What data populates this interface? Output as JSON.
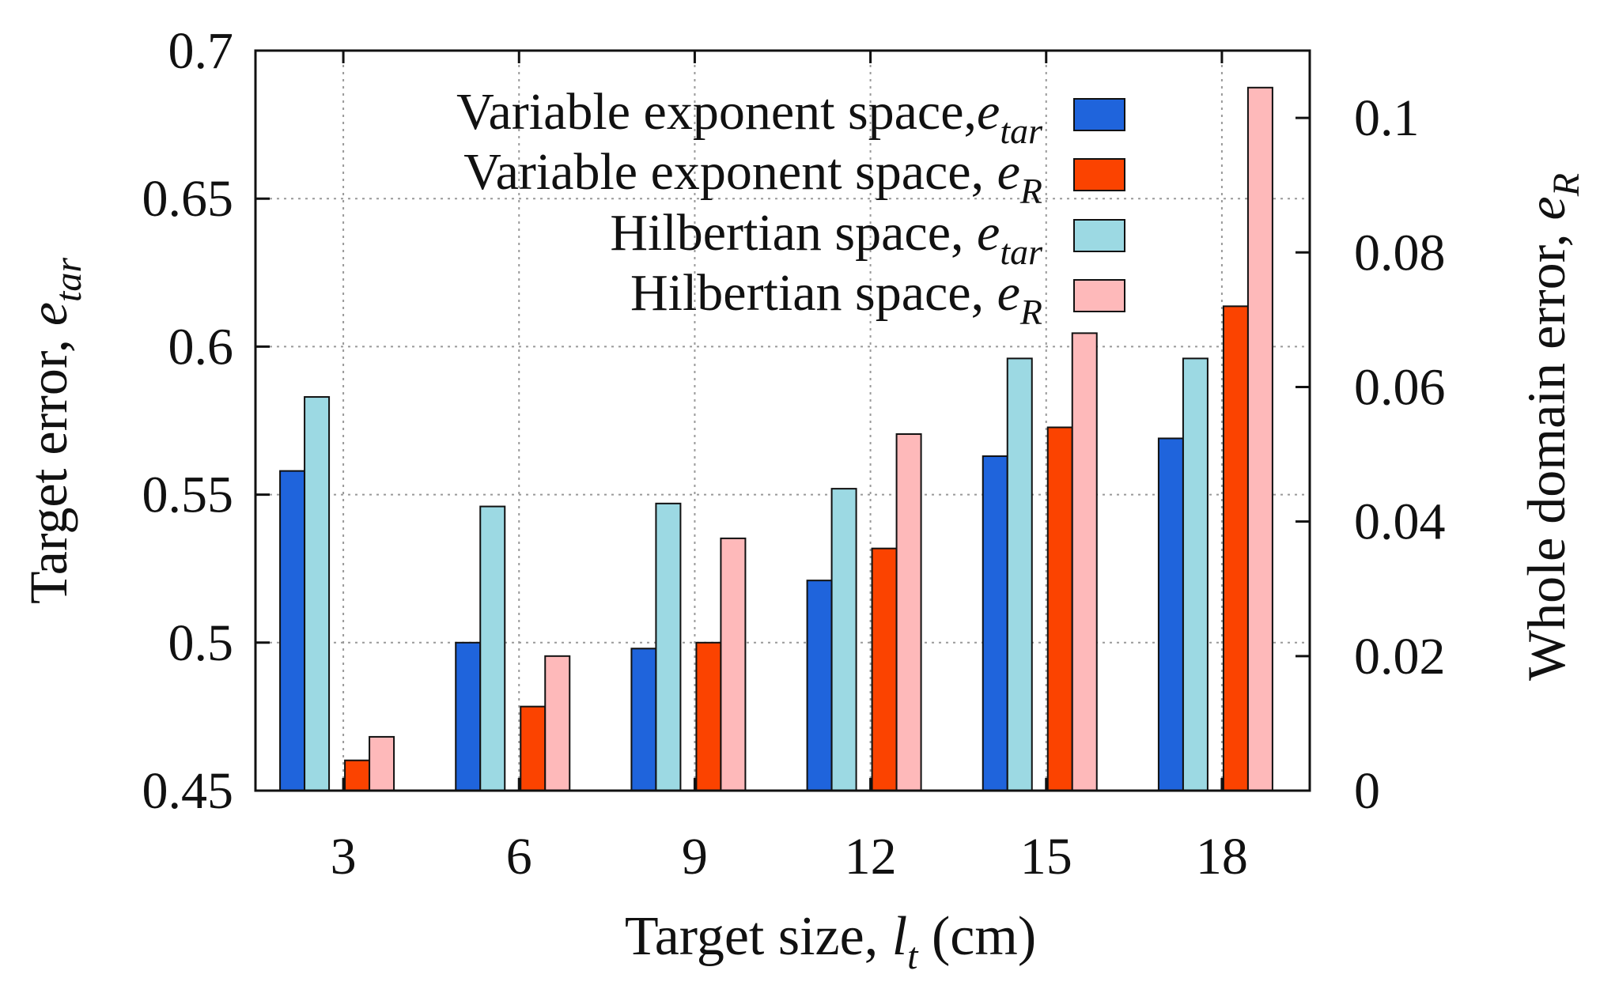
{
  "chart_data": {
    "type": "bar",
    "categories": [
      "3",
      "6",
      "9",
      "12",
      "15",
      "18"
    ],
    "xlabel": {
      "main": "Target size, ",
      "var": "l",
      "sub": "t",
      "unit": " (cm)"
    },
    "ylabel_left": {
      "main": "Target error, ",
      "var": "e",
      "sub": "tar"
    },
    "ylabel_right": {
      "main": "Whole domain error, ",
      "var": "e",
      "sub": "R"
    },
    "y_left": {
      "range": [
        0.45,
        0.7
      ],
      "ticks": [
        0.45,
        0.5,
        0.55,
        0.6,
        0.65,
        0.7
      ],
      "tick_labels": [
        "0.45",
        "0.5",
        "0.55",
        "0.6",
        "0.65",
        "0.7"
      ]
    },
    "y_right": {
      "range": [
        0,
        0.11
      ],
      "ticks": [
        0,
        0.02,
        0.04,
        0.06,
        0.08,
        0.1
      ],
      "tick_labels": [
        "0",
        "0.02",
        "0.04",
        "0.06",
        "0.08",
        "0.1"
      ]
    },
    "grid": true,
    "legend_position": "top-right",
    "series": [
      {
        "name": "Variable exponent space,",
        "var": "e",
        "sub": "tar",
        "axis": "left",
        "color": "#1f64dc",
        "values": [
          0.558,
          0.5,
          0.498,
          0.521,
          0.563,
          0.569
        ]
      },
      {
        "name": "Hilbertian space,",
        "var": "e",
        "sub": "tar",
        "axis": "left",
        "color": "#9cd9e3",
        "values": [
          0.583,
          0.546,
          0.547,
          0.552,
          0.596,
          0.596
        ]
      },
      {
        "name": "Variable exponent space,",
        "var": "e",
        "sub": "R",
        "axis": "right",
        "color": "#fb4300",
        "values": [
          0.0045,
          0.0125,
          0.022,
          0.036,
          0.054,
          0.072
        ]
      },
      {
        "name": "Hilbertian space,",
        "var": "e",
        "sub": "R",
        "axis": "right",
        "color": "#feb9ba",
        "values": [
          0.008,
          0.02,
          0.0375,
          0.053,
          0.068,
          0.1045
        ]
      }
    ],
    "legend_order": [
      0,
      2,
      1,
      3
    ]
  }
}
